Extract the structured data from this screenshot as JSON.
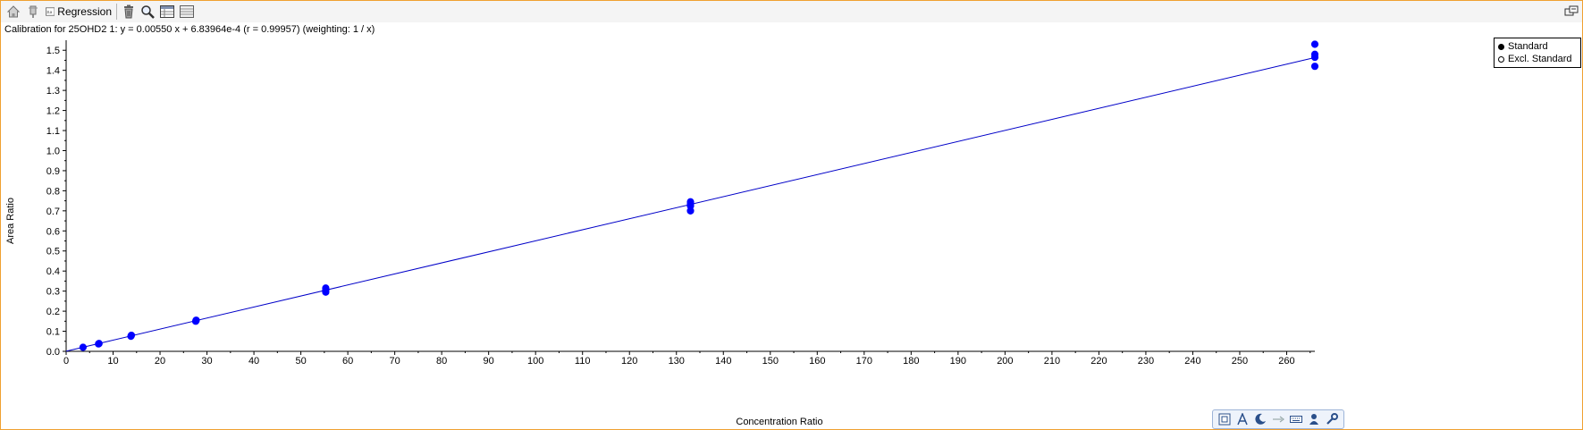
{
  "toolbar": {
    "regression_label": "Regression",
    "reg_icon_text": "3.x"
  },
  "chart_data": {
    "type": "scatter",
    "title": "Calibration for 25OHD2 1: y = 0.00550 x + 6.83964e-4 (r = 0.99957)  (weighting: 1 / x)",
    "xlabel": "Concentration Ratio",
    "ylabel": "Area Ratio",
    "xlim": [
      0,
      266
    ],
    "ylim": [
      0,
      1.55
    ],
    "x_ticks": [
      0,
      10,
      20,
      30,
      40,
      50,
      60,
      70,
      80,
      90,
      100,
      110,
      120,
      130,
      140,
      150,
      160,
      170,
      180,
      190,
      200,
      210,
      220,
      230,
      240,
      250,
      260
    ],
    "y_ticks": [
      0.0,
      0.1,
      0.2,
      0.3,
      0.4,
      0.5,
      0.6,
      0.7,
      0.8,
      0.9,
      1.0,
      1.1,
      1.2,
      1.3,
      1.4,
      1.5
    ],
    "y_tick_labels": [
      "0.0",
      "0.1",
      "0.2",
      "0.3",
      "0.4",
      "0.5",
      "0.6",
      "0.7",
      "0.8",
      "0.9",
      "1.0",
      "1.1",
      "1.2",
      "1.3",
      "1.4",
      "1.5"
    ],
    "fit": {
      "slope": 0.0055,
      "intercept": 0.000683964,
      "x_range": [
        0,
        266
      ],
      "color": "#0000c8"
    },
    "series": [
      {
        "name": "Standard",
        "marker": "filled",
        "color": "#0000ff",
        "points": [
          {
            "x": 3.6,
            "y": 0.02
          },
          {
            "x": 6.9,
            "y": 0.037
          },
          {
            "x": 7.0,
            "y": 0.039
          },
          {
            "x": 13.8,
            "y": 0.075
          },
          {
            "x": 13.9,
            "y": 0.08
          },
          {
            "x": 27.6,
            "y": 0.15
          },
          {
            "x": 27.7,
            "y": 0.155
          },
          {
            "x": 55.3,
            "y": 0.295
          },
          {
            "x": 55.3,
            "y": 0.305
          },
          {
            "x": 55.3,
            "y": 0.315
          },
          {
            "x": 133.0,
            "y": 0.7
          },
          {
            "x": 133.0,
            "y": 0.725
          },
          {
            "x": 133.0,
            "y": 0.735
          },
          {
            "x": 133.0,
            "y": 0.745
          },
          {
            "x": 266.0,
            "y": 1.42
          },
          {
            "x": 266.0,
            "y": 1.465
          },
          {
            "x": 266.0,
            "y": 1.48
          },
          {
            "x": 266.0,
            "y": 1.53
          }
        ]
      }
    ],
    "legend": {
      "position": "top-right",
      "entries": [
        {
          "label": "Standard",
          "marker": "filled"
        },
        {
          "label": "Excl. Standard",
          "marker": "open"
        }
      ]
    }
  }
}
